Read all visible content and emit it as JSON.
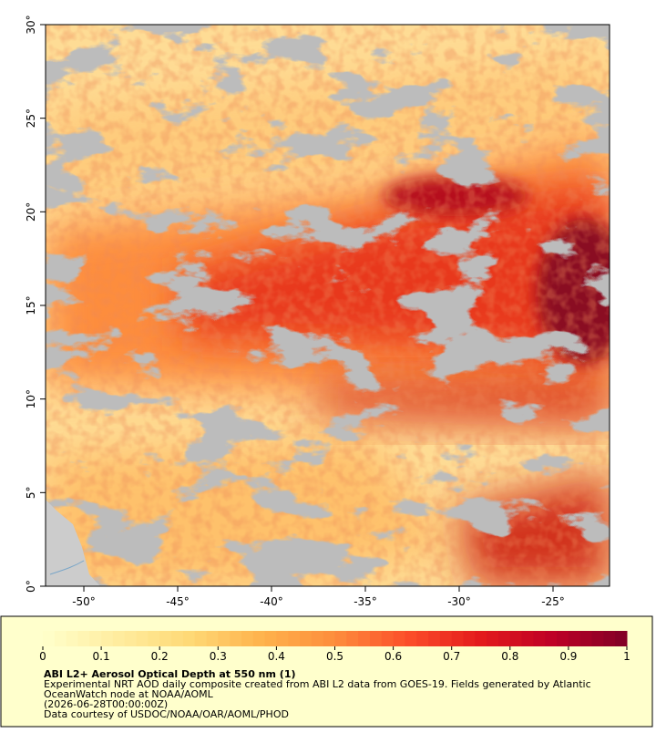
{
  "map": {
    "xlim": [
      -52.04,
      -21.99
    ],
    "ylim": [
      0,
      30
    ],
    "xticks": [
      {
        "value": -50,
        "label": "-50°"
      },
      {
        "value": -45,
        "label": "-45°"
      },
      {
        "value": -40,
        "label": "-40°"
      },
      {
        "value": -35,
        "label": "-35°"
      },
      {
        "value": -30,
        "label": "-30°"
      },
      {
        "value": -25,
        "label": "-25°"
      }
    ],
    "yticks": [
      {
        "value": 0,
        "label": "0°"
      },
      {
        "value": 5,
        "label": "5°"
      },
      {
        "value": 10,
        "label": "10°"
      },
      {
        "value": 15,
        "label": "15°"
      },
      {
        "value": 20,
        "label": "20°"
      },
      {
        "value": 25,
        "label": "25°"
      },
      {
        "value": 30,
        "label": "30°"
      }
    ]
  },
  "colorbar": {
    "lim": [
      0,
      1
    ],
    "ticks": [
      0,
      0.1,
      0.2,
      0.3,
      0.4,
      0.5,
      0.6,
      0.7,
      0.8,
      0.9,
      1
    ],
    "colors": [
      "#ffffcc",
      "#ffeda0",
      "#fed976",
      "#feb24c",
      "#fd8d3c",
      "#fc4e2a",
      "#e31a1c",
      "#bd0026",
      "#800026"
    ]
  },
  "legend": {
    "title": "ABI L2+ Aerosol Optical Depth at 550 nm (1)",
    "lines": [
      "Experimental NRT AOD daily composite created from ABI L2 data from GOES-19. Fields generated by Atlantic",
      "OceanWatch node at NOAA/AOML",
      "(2026-06-28T00:00:00Z)",
      "Data courtesy of USDOC/NOAA/OAR/AOML/PHOD"
    ]
  }
}
